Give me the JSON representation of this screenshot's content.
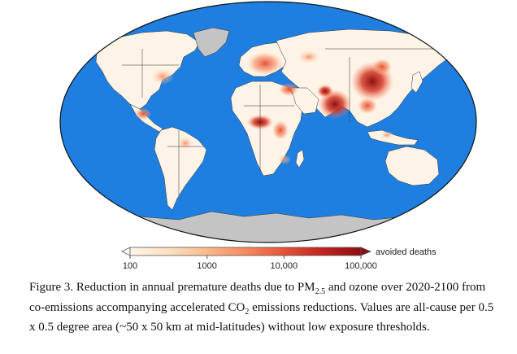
{
  "colorbar": {
    "ticks": [
      "100",
      "1000",
      "10,000",
      "100,000"
    ],
    "label": "avoided deaths",
    "colors": [
      "#fff5e8",
      "#fde0c2",
      "#fcb98e",
      "#f6895f",
      "#e5533a",
      "#c1241f",
      "#8b0f10"
    ],
    "scale": "log"
  },
  "map_colors": {
    "ocean": "#1e7fe0",
    "land": "#fdf3e6",
    "antarctica": "#c4c4c4",
    "greenland": "#c4c4c4",
    "borders": "#333333"
  },
  "caption": {
    "figure": "Figure 3.",
    "t1": " Reduction in annual premature deaths due to PM",
    "sub1": "2.5",
    "t2": " and ozone over 2020-2100 from co-emissions accompanying accelerated CO",
    "sub2": "2",
    "t3": " emissions reductions. Values are all-cause per 0.5 x 0.5 degree area (~50 x 50 km at mid-latitudes) without low exposure thresholds."
  }
}
